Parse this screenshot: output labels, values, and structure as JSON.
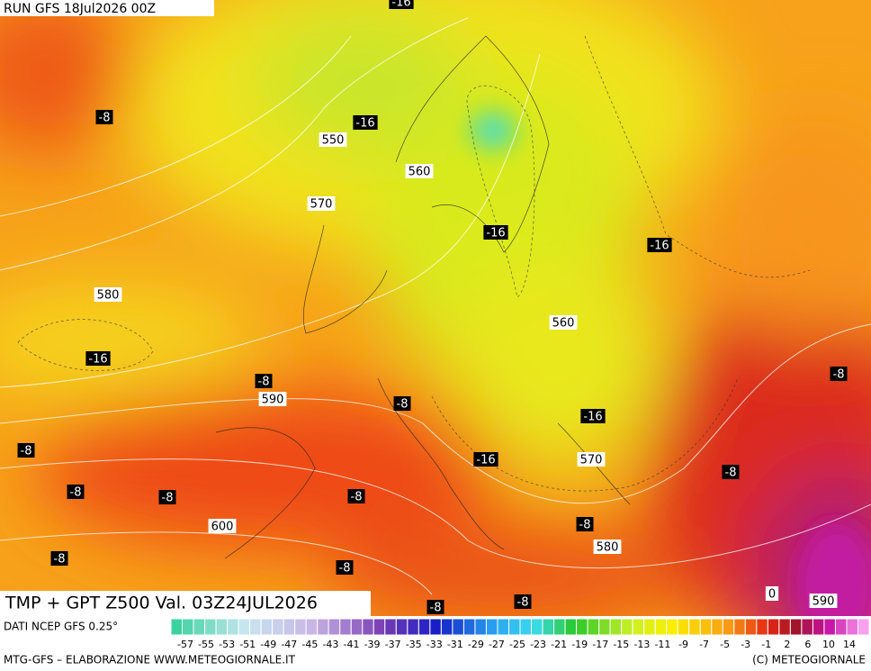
{
  "header": "RUN GFS 18Jul2026 00Z",
  "title": "TMP + GPT Z500 Val. 03Z24JUL2026",
  "source": "DATI NCEP GFS 0.25°",
  "credit_left": "MTG-GFS – ELABORAZIONE WWW.METEOGIORNALE.IT",
  "credit_right": "(C) METEOGIORNALE",
  "contour_labels": [
    "-16",
    "-8",
    "-16",
    "550",
    "560",
    "570",
    "-16",
    "-16",
    "580",
    "560",
    "-16",
    "-8",
    "590",
    "-8",
    "-8",
    "-16",
    "-8",
    "-16",
    "570",
    "-8",
    "-8",
    "-8",
    "-8",
    "600",
    "-8",
    "580",
    "-8",
    "-8",
    "0",
    "590",
    "-8",
    "-8"
  ],
  "colorbar_labels": [
    "-57",
    "-55",
    "-53",
    "-51",
    "-49",
    "-47",
    "-45",
    "-43",
    "-41",
    "-39",
    "-37",
    "-35",
    "-33",
    "-31",
    "-29",
    "-27",
    "-25",
    "-23",
    "-21",
    "-19",
    "-17",
    "-15",
    "-13",
    "-11",
    "-9",
    "-7",
    "-5",
    "-3",
    "-1",
    "2",
    "6",
    "10",
    "14"
  ]
}
